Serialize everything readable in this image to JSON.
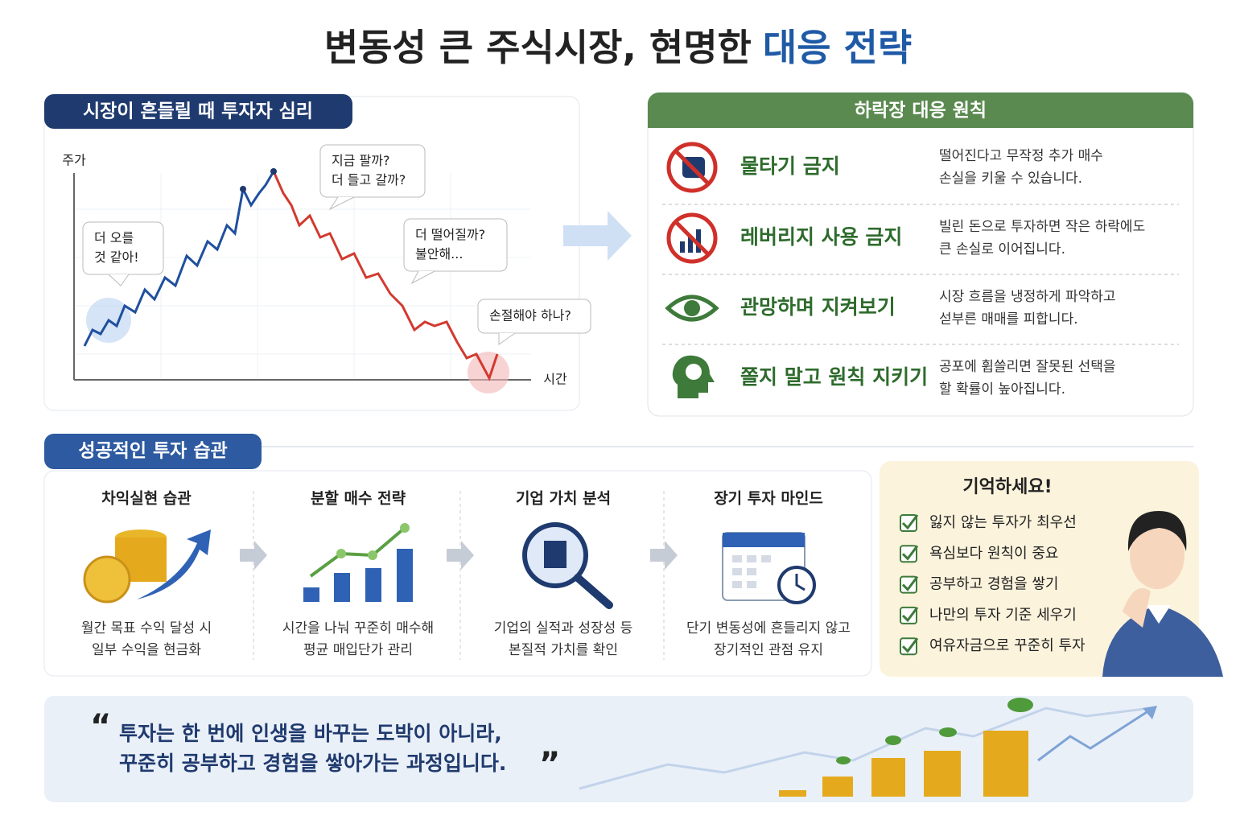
{
  "title": {
    "main": "변동성 큰 주식시장, 현명한",
    "highlight": "대응 전략"
  },
  "psychology": {
    "heading": "시장이 흔들릴 때 투자자 심리",
    "y_label": "주가",
    "x_label": "시간",
    "bubbles": [
      {
        "lines": [
          "더 오를",
          "것 같아!"
        ]
      },
      {
        "lines": [
          "지금 팔까?",
          "더 들고 갈까?"
        ]
      },
      {
        "lines": [
          "더 떨어질까?",
          "불안해..."
        ]
      },
      {
        "lines": [
          "손절해야 하나?"
        ]
      }
    ]
  },
  "principles": {
    "heading": "하락장 대응 원칙",
    "items": [
      {
        "title": "물타기 금지",
        "description": [
          "떨어진다고 무작정 추가 매수",
          "손실을 키울 수 있습니다."
        ]
      },
      {
        "title": "레버리지 사용 금지",
        "description": [
          "빌린 돈으로 투자하면 작은 하락에도",
          "큰 손실로 이어집니다."
        ]
      },
      {
        "title": "관망하며 지켜보기",
        "description": [
          "시장 흐름을 냉정하게 파악하고",
          "섣부른 매매를 피합니다."
        ]
      },
      {
        "title": "쫄지 말고 원칙 지키기",
        "description": [
          "공포에 휩쓸리면 잘못된 선택을",
          "할 확률이 높아집니다."
        ]
      }
    ]
  },
  "habits": {
    "heading": "성공적인 투자 습관",
    "steps": [
      {
        "title": "차익실현 습관",
        "description": [
          "월간 목표 수익 달성 시",
          "일부 수익을 현금화"
        ]
      },
      {
        "title": "분할 매수 전략",
        "description": [
          "시간을 나눠 꾸준히 매수해",
          "평균 매입단가 관리"
        ]
      },
      {
        "title": "기업 가치 분석",
        "description": [
          "기업의 실적과 성장성 등",
          "본질적 가치를 확인"
        ]
      },
      {
        "title": "장기 투자 마인드",
        "description": [
          "단기 변동성에 흔들리지 않고",
          "장기적인 관점 유지"
        ]
      }
    ]
  },
  "remember": {
    "title": "기억하세요!",
    "items": [
      "잃지 않는 투자가 최우선",
      "욕심보다 원칙이 중요",
      "공부하고 경험을 쌓기",
      "나만의 투자 기준 세우기",
      "여유자금으로 꾸준히 투자"
    ]
  },
  "quote": {
    "lines": [
      "투자는 한 번에 인생을 바꾸는 도박이 아니라,",
      "꾸준히 공부하고 경험을 쌓아가는 과정입니다."
    ]
  }
}
